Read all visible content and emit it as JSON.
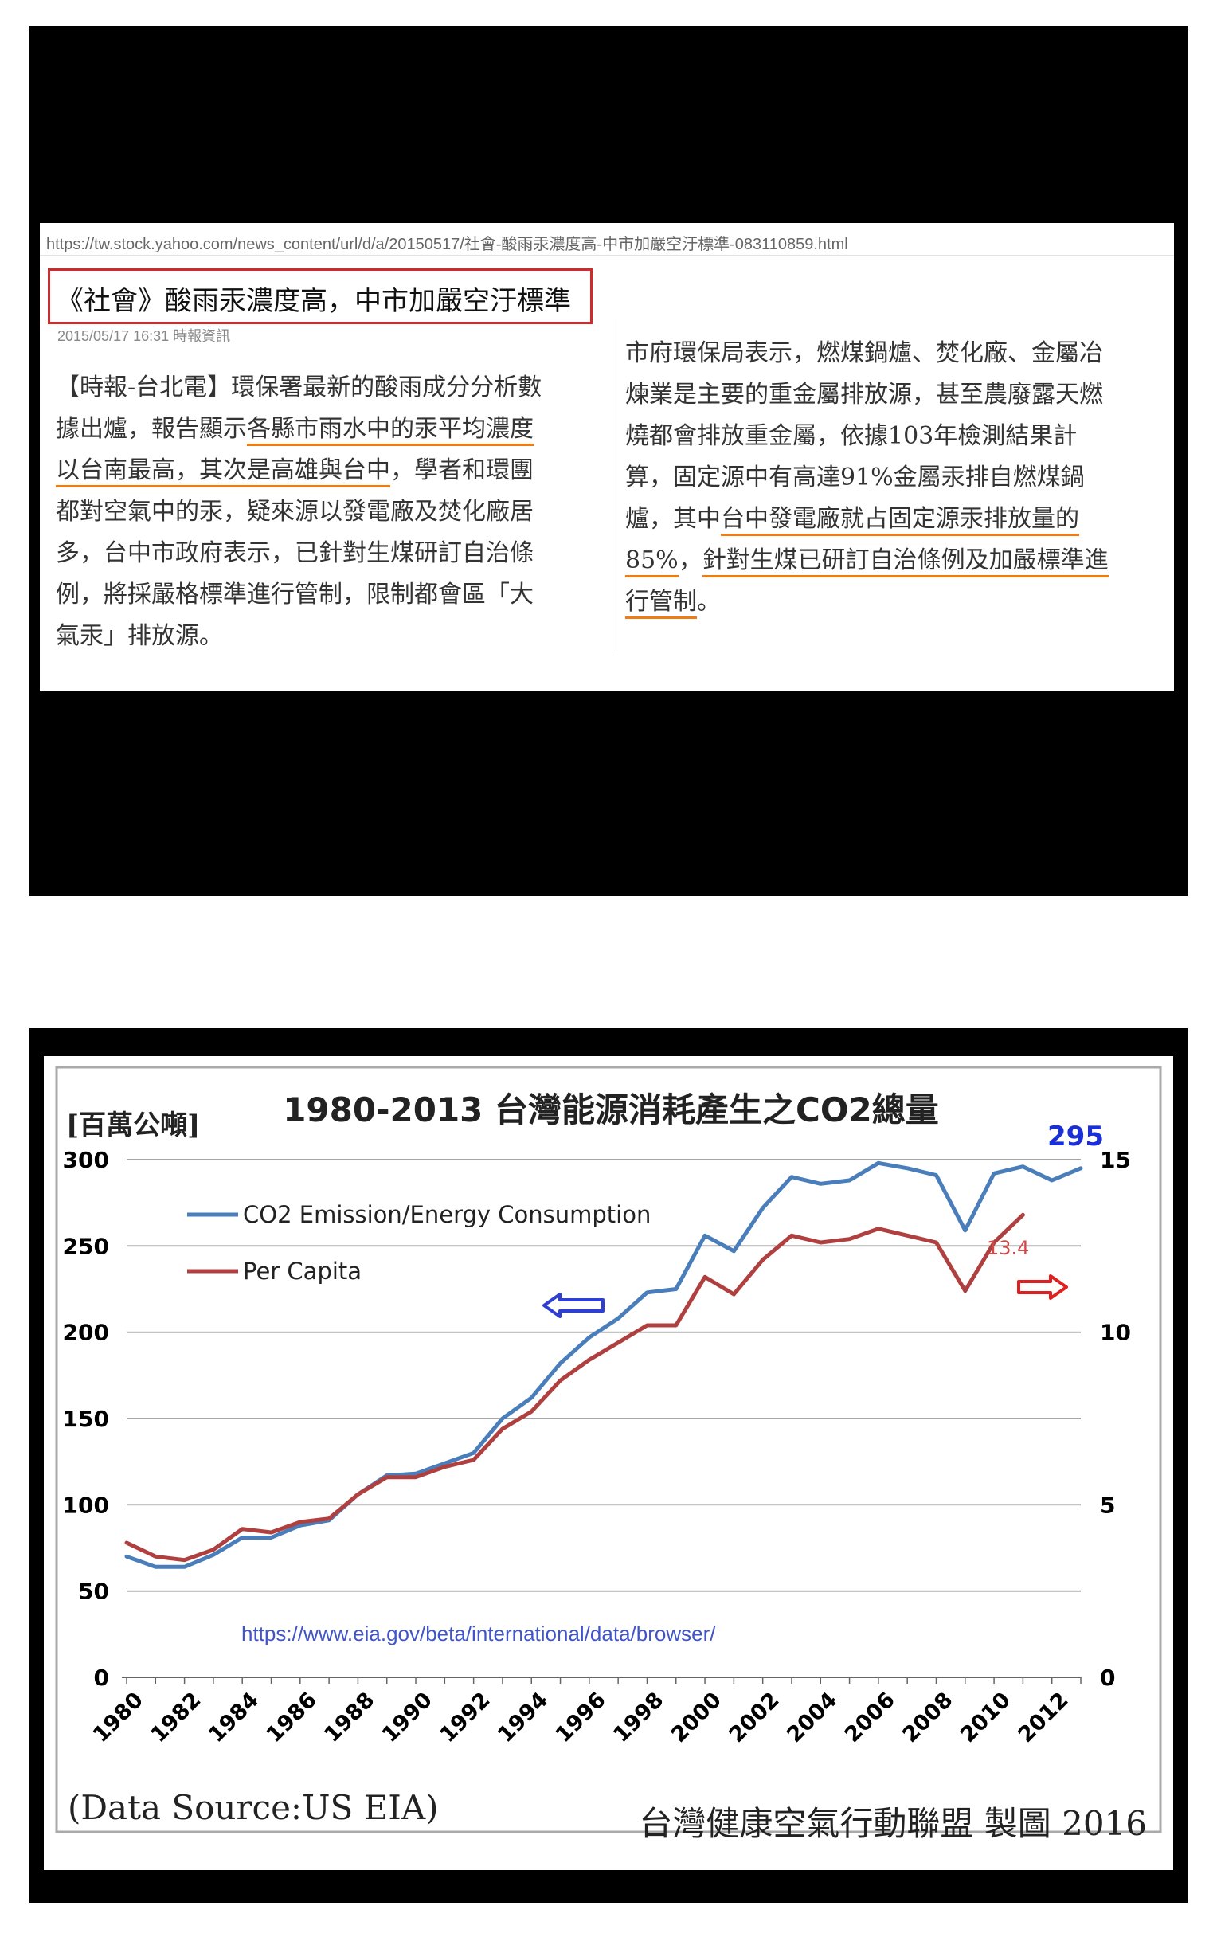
{
  "article": {
    "url": "https://tw.stock.yahoo.com/news_content/url/d/a/20150517/社會-酸雨汞濃度高-中市加嚴空汙標準-083110859.html",
    "headline": "《社會》酸雨汞濃度高，中市加嚴空汙標準",
    "byline": "2015/05/17 16:31 時報資訊",
    "left_lines": [
      [
        {
          "t": "【時報-台北電】環保署最新的酸雨成分分析數"
        }
      ],
      [
        {
          "t": "據出爐，報告顯示"
        },
        {
          "t": "各縣市雨水中的汞平均濃度",
          "u": true
        }
      ],
      [
        {
          "t": "以台南最高，其次是高雄與台中",
          "u": true
        },
        {
          "t": "，學者和環團"
        }
      ],
      [
        {
          "t": "都對空氣中的汞，疑來源以發電廠及焚化廠居"
        }
      ],
      [
        {
          "t": "多，台中市政府表示，已針對生煤研訂自治條"
        }
      ],
      [
        {
          "t": "例，將採嚴格標準進行管制，限制都會區「大"
        }
      ],
      [
        {
          "t": "氣汞」排放源。"
        }
      ]
    ],
    "right_lines": [
      [
        {
          "t": "市府環保局表示，燃煤鍋爐、焚化廠、金屬冶"
        }
      ],
      [
        {
          "t": "煉業是主要的重金屬排放源，甚至農廢露天燃"
        }
      ],
      [
        {
          "t": "燒都會排放重金屬，依據103年檢測結果計"
        }
      ],
      [
        {
          "t": "算，固定源中有高達91%金屬汞排自燃煤鍋"
        }
      ],
      [
        {
          "t": "爐，其中"
        },
        {
          "t": "台中發電廠就占固定源汞排放量的",
          "u": true
        }
      ],
      [
        {
          "t": "85%",
          "u": true
        },
        {
          "t": "，"
        },
        {
          "t": "針對生煤已研訂自治條例及加嚴標準進",
          "u": true
        }
      ],
      [
        {
          "t": "行管制",
          "u": true
        },
        {
          "t": "。"
        }
      ]
    ]
  },
  "colors": {
    "underline": "#ef7b12",
    "headline_border": "#d22a2a",
    "co2_line": "#4a7ebb",
    "per_capita_line": "#b04040",
    "left_arrow": "#2f3fd1",
    "right_arrow": "#e02020",
    "peak_label": "#1a2fd6",
    "per_capita_label": "#d04848"
  },
  "chart_data": {
    "type": "line",
    "title": "1980-2013 台灣能源消耗產生之CO2總量",
    "ylabel": "[百萬公噸]",
    "ylim": [
      0,
      300
    ],
    "y_ticks": [
      0,
      50,
      100,
      150,
      200,
      250,
      300
    ],
    "y2lim": [
      0,
      15
    ],
    "y2_ticks": [
      0,
      5,
      10,
      15
    ],
    "x_tick_labels": [
      "1980",
      "1982",
      "1984",
      "1986",
      "1988",
      "1990",
      "1992",
      "1994",
      "1996",
      "1998",
      "2000",
      "2002",
      "2004",
      "2006",
      "2008",
      "2010",
      "2012"
    ],
    "x": [
      1980,
      1981,
      1982,
      1983,
      1984,
      1985,
      1986,
      1987,
      1988,
      1989,
      1990,
      1991,
      1992,
      1993,
      1994,
      1995,
      1996,
      1997,
      1998,
      1999,
      2000,
      2001,
      2002,
      2003,
      2004,
      2005,
      2006,
      2007,
      2008,
      2009,
      2010,
      2011,
      2012,
      2013
    ],
    "series": [
      {
        "name": "CO2 Emission/Energy Consumption",
        "axis": "left",
        "values": [
          70,
          64,
          64,
          71,
          81,
          81,
          88,
          91,
          106,
          117,
          118,
          124,
          130,
          150,
          162,
          182,
          197,
          208,
          223,
          225,
          256,
          247,
          272,
          290,
          286,
          288,
          298,
          295,
          291,
          259,
          292,
          296,
          288,
          295
        ]
      },
      {
        "name": "Per Capita",
        "axis": "right",
        "values": [
          3.9,
          3.5,
          3.4,
          3.7,
          4.3,
          4.2,
          4.5,
          4.6,
          5.3,
          5.8,
          5.8,
          6.1,
          6.3,
          7.2,
          7.7,
          8.6,
          9.2,
          9.7,
          10.2,
          10.2,
          11.6,
          11.1,
          12.1,
          12.8,
          12.6,
          12.7,
          13.0,
          12.8,
          12.6,
          11.2,
          12.6,
          13.4,
          null,
          null
        ]
      }
    ],
    "annotations": {
      "peak_value": "295",
      "per_capita_value": "13.4",
      "source_url": "https://www.eia.gov/beta/international/data/browser/"
    },
    "footer_left": "(Data Source:US EIA)",
    "footer_right": "台灣健康空氣行動聯盟 製圖 2016",
    "grid": true,
    "legend": "top-left"
  }
}
